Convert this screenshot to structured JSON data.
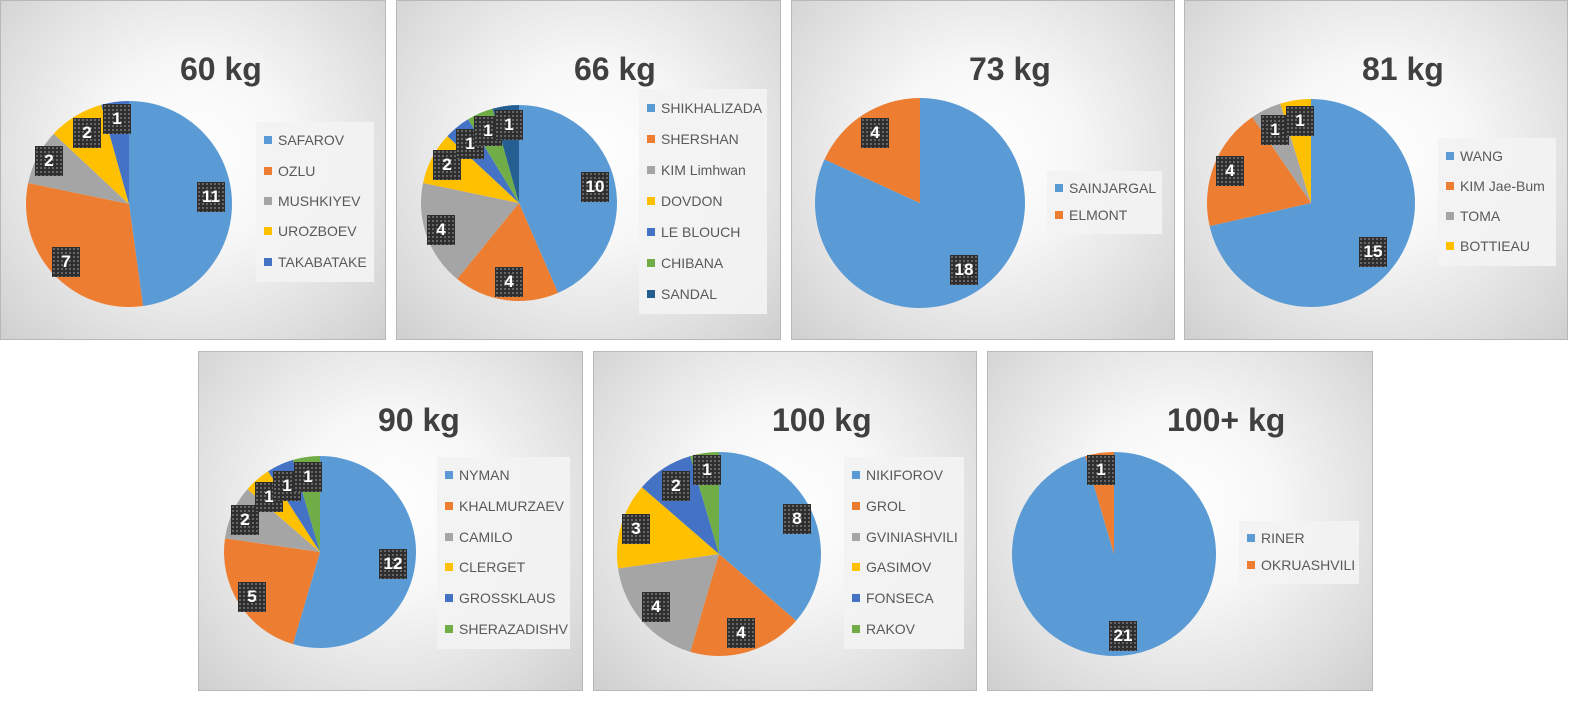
{
  "chart_data": [
    {
      "type": "pie",
      "title": "60 kg",
      "categories": [
        "SAFAROV",
        "OZLU",
        "MUSHKIYEV",
        "UROZBOEV",
        "TAKABATAKE"
      ],
      "values": [
        11,
        7,
        2,
        2,
        1
      ],
      "colors": [
        "#5B9BD5",
        "#ED7D31",
        "#A5A5A5",
        "#FFC000",
        "#4472C4"
      ],
      "legend": "right"
    },
    {
      "type": "pie",
      "title": "66 kg",
      "categories": [
        "SHIKHALIZADA",
        "SHERSHAN",
        "KIM Limhwan",
        "DOVDON",
        "LE BLOUCH",
        "CHIBANA",
        "SANDAL"
      ],
      "values": [
        10,
        4,
        4,
        2,
        1,
        1,
        1
      ],
      "colors": [
        "#5B9BD5",
        "#ED7D31",
        "#A5A5A5",
        "#FFC000",
        "#4472C4",
        "#70AD47",
        "#255E91"
      ],
      "legend": "right"
    },
    {
      "type": "pie",
      "title": "73 kg",
      "categories": [
        "SAINJARGAL",
        "ELMONT"
      ],
      "values": [
        18,
        4
      ],
      "colors": [
        "#5B9BD5",
        "#ED7D31"
      ],
      "legend": "right"
    },
    {
      "type": "pie",
      "title": "81 kg",
      "categories": [
        "WANG",
        "KIM Jae-Bum",
        "TOMA",
        "BOTTIEAU"
      ],
      "values": [
        15,
        4,
        1,
        1
      ],
      "colors": [
        "#5B9BD5",
        "#ED7D31",
        "#A5A5A5",
        "#FFC000"
      ],
      "legend": "right"
    },
    {
      "type": "pie",
      "title": "90 kg",
      "categories": [
        "NYMAN",
        "KHALMURZAEV",
        "CAMILO",
        "CLERGET",
        "GROSSKLAUS",
        "SHERAZADISHV"
      ],
      "values": [
        12,
        5,
        2,
        1,
        1,
        1
      ],
      "colors": [
        "#5B9BD5",
        "#ED7D31",
        "#A5A5A5",
        "#FFC000",
        "#4472C4",
        "#70AD47"
      ],
      "legend": "right"
    },
    {
      "type": "pie",
      "title": "100 kg",
      "categories": [
        "NIKIFOROV",
        "GROL",
        "GVINIASHVILI",
        "GASIMOV",
        "FONSECA",
        "RAKOV"
      ],
      "values": [
        8,
        4,
        4,
        3,
        2,
        1
      ],
      "colors": [
        "#5B9BD5",
        "#ED7D31",
        "#A5A5A5",
        "#FFC000",
        "#4472C4",
        "#70AD47"
      ],
      "legend": "right"
    },
    {
      "type": "pie",
      "title": "100+ kg",
      "categories": [
        "RINER",
        "OKRUASHVILI"
      ],
      "values": [
        21,
        1
      ],
      "colors": [
        "#5B9BD5",
        "#ED7D31"
      ],
      "legend": "right"
    }
  ]
}
